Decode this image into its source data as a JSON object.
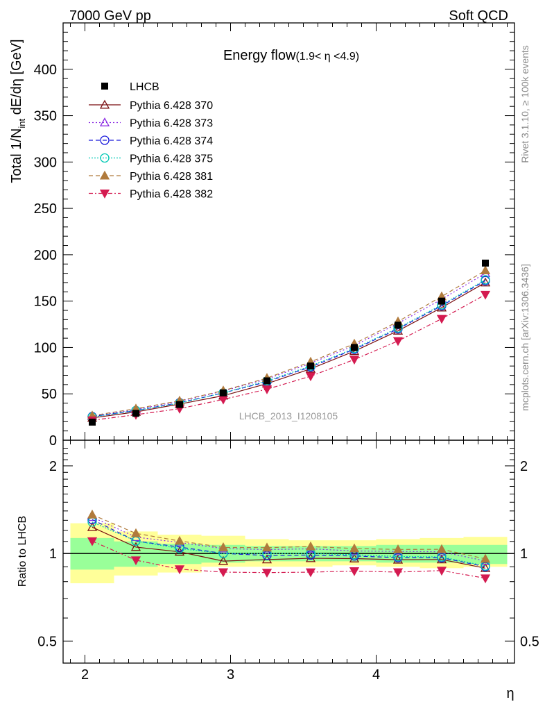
{
  "header": {
    "left": "7000 GeV pp",
    "right": "Soft QCD"
  },
  "side_labels": {
    "rivet": "Rivet 3.1.10, ≥ 100k events",
    "mcplots": "mcplots.cern.ch [arXiv:1306.3436]"
  },
  "watermark": "LHCB_2013_I1208105",
  "chart_data": {
    "type": "scatter",
    "title_main": "Energy flow",
    "title_cut": "(1.9< η <4.9)",
    "xlabel": "η",
    "ylabel_main": "Total 1/N",
    "ylabel_sub": "int",
    "ylabel_rest": " dE/dη [GeV]",
    "ratio_ylabel": "Ratio to LHCB",
    "xlim": [
      1.85,
      4.95
    ],
    "ylim": [
      0,
      450
    ],
    "ratio_ylim": [
      0.42,
      2.45
    ],
    "ratio_scale": "log",
    "x_ticks": [
      "2",
      "3",
      "4"
    ],
    "y_ticks": [
      "0",
      "50",
      "100",
      "150",
      "200",
      "250",
      "300",
      "350",
      "400"
    ],
    "ratio_ticks": [
      "0.5",
      "1",
      "2"
    ],
    "x": [
      2.05,
      2.35,
      2.65,
      2.95,
      3.25,
      3.55,
      3.85,
      4.15,
      4.45,
      4.75
    ],
    "x_edges": [
      1.9,
      2.2,
      2.5,
      2.8,
      3.1,
      3.4,
      3.7,
      4.0,
      4.3,
      4.6,
      4.9
    ],
    "reference": {
      "name": "LHCB",
      "values": [
        19.5,
        29,
        38.5,
        51,
        64,
        80,
        100,
        124,
        150,
        191
      ],
      "band_green": [
        [
          0.88,
          1.13
        ],
        [
          0.9,
          1.1
        ],
        [
          0.92,
          1.08
        ],
        [
          0.93,
          1.07
        ],
        [
          0.94,
          1.06
        ],
        [
          0.94,
          1.06
        ],
        [
          0.94,
          1.06
        ],
        [
          0.93,
          1.07
        ],
        [
          0.93,
          1.07
        ],
        [
          0.92,
          1.07
        ]
      ],
      "band_yellow": [
        [
          0.79,
          1.27
        ],
        [
          0.84,
          1.19
        ],
        [
          0.86,
          1.16
        ],
        [
          0.9,
          1.15
        ],
        [
          0.9,
          1.12
        ],
        [
          0.9,
          1.11
        ],
        [
          0.91,
          1.11
        ],
        [
          0.9,
          1.12
        ],
        [
          0.89,
          1.13
        ],
        [
          0.9,
          1.14
        ]
      ]
    },
    "series": [
      {
        "name": "Pythia 6.428 370",
        "color": "#7a0f12",
        "marker": "triangle-open",
        "dash": "",
        "values": [
          24,
          30.5,
          39,
          48,
          61,
          77,
          96,
          118,
          143,
          170
        ]
      },
      {
        "name": "Pythia 6.428 373",
        "color": "#8a2be2",
        "marker": "triangle-open",
        "dash": "2,3",
        "values": [
          26,
          33,
          42,
          53,
          66,
          83,
          102,
          126,
          152,
          180
        ]
      },
      {
        "name": "Pythia 6.428 374",
        "color": "#1a1adb",
        "marker": "circle-open",
        "dash": "6,4",
        "values": [
          25.5,
          32,
          40.5,
          51,
          63,
          79,
          98,
          120,
          145,
          172
        ]
      },
      {
        "name": "Pythia 6.428 375",
        "color": "#00c8b4",
        "marker": "circle-open",
        "dash": "2,2",
        "values": [
          25,
          32,
          40,
          51,
          64,
          80,
          99,
          121,
          146,
          173
        ]
      },
      {
        "name": "Pythia 6.428 381",
        "color": "#b07a3c",
        "marker": "triangle-filled",
        "dash": "6,4",
        "values": [
          26.5,
          34,
          42.5,
          53.5,
          67,
          84.5,
          104,
          128,
          155,
          183
        ]
      },
      {
        "name": "Pythia 6.428 382",
        "color": "#d41a50",
        "marker": "triangle-down-filled",
        "dash": "6,3,2,3",
        "values": [
          21.5,
          27.5,
          34,
          44,
          55,
          69,
          87,
          107,
          131,
          157
        ]
      }
    ]
  }
}
